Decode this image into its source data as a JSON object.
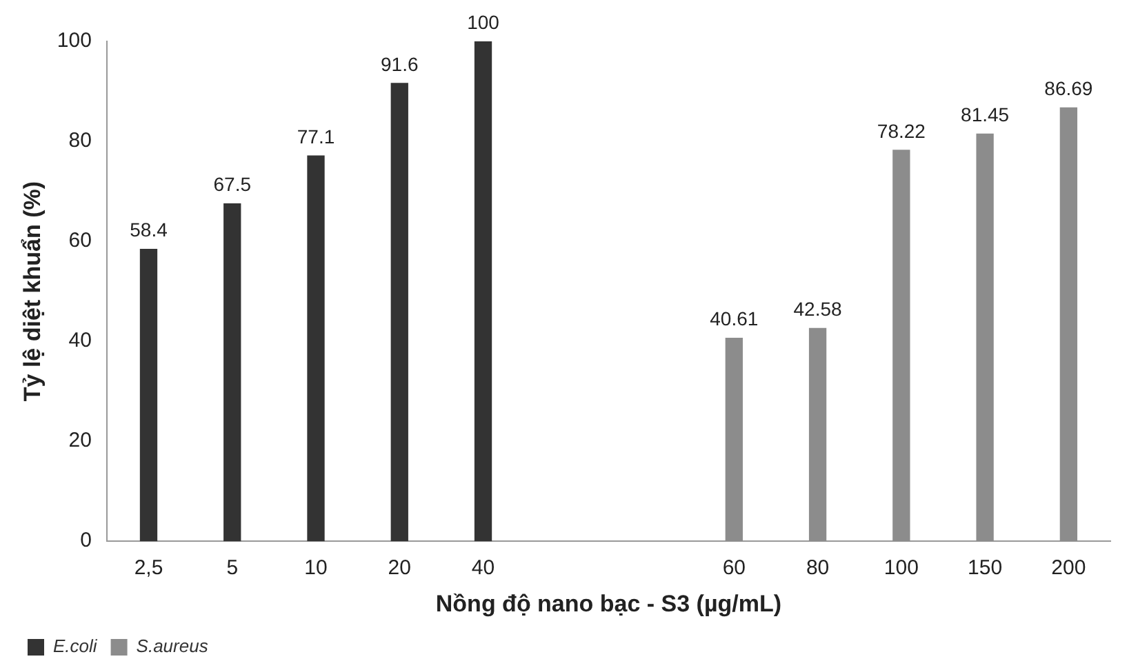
{
  "chart_data": {
    "type": "bar",
    "xlabel": "Nồng độ nano bạc - S3 (µg/mL)",
    "ylabel": "Tỷ lệ diệt khuẩn (%)",
    "categories": [
      "2,5",
      "5",
      "10",
      "20",
      "40",
      null,
      null,
      "60",
      "80",
      "100",
      "150",
      "200"
    ],
    "series": [
      {
        "name": "E.coli",
        "color": "#333333",
        "values": [
          58.4,
          67.5,
          77.1,
          91.6,
          100,
          null,
          null,
          null,
          null,
          null,
          null,
          null
        ]
      },
      {
        "name": "S.aureus",
        "color": "#8c8c8c",
        "values": [
          null,
          null,
          null,
          null,
          null,
          null,
          null,
          40.61,
          42.58,
          78.22,
          81.45,
          86.69
        ]
      }
    ],
    "ylim": [
      0,
      100
    ],
    "yticks": [
      0,
      20,
      40,
      60,
      80,
      100
    ],
    "grid": false,
    "legend": "bottom left",
    "data_labels": true
  }
}
